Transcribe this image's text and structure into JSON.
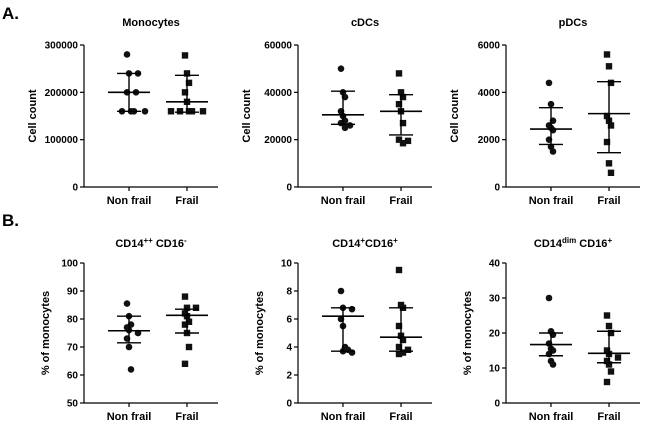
{
  "panels": [
    {
      "letter": "A."
    },
    {
      "letter": "B."
    }
  ],
  "chart_data": [
    {
      "type": "scatter",
      "title": "Monocytes",
      "title_parts": [
        {
          "text": "Monocytes",
          "sup": ""
        }
      ],
      "ylabel": "Cell count",
      "ylim": [
        0,
        300000
      ],
      "yticks": [
        0,
        100000,
        200000,
        300000
      ],
      "categories": [
        "Non frail",
        "Frail"
      ],
      "series": [
        {
          "name": "Non frail",
          "marker": "circle",
          "values": [
            280000,
            240000,
            240000,
            200000,
            200000,
            160000,
            160000,
            160000,
            160000
          ],
          "mean": 200000,
          "sd_low": 160000,
          "sd_high": 240000
        },
        {
          "name": "Frail",
          "marker": "square",
          "values": [
            278000,
            240000,
            220000,
            200000,
            180000,
            160000,
            160000,
            160000,
            160000,
            160000
          ],
          "mean": 180000,
          "sd_low": 158000,
          "sd_high": 236000
        }
      ]
    },
    {
      "type": "scatter",
      "title": "cDCs",
      "title_parts": [
        {
          "text": "cDCs",
          "sup": ""
        }
      ],
      "ylabel": "Cell count",
      "ylim": [
        0,
        60000
      ],
      "yticks": [
        0,
        20000,
        40000,
        60000
      ],
      "categories": [
        "Non frail",
        "Frail"
      ],
      "series": [
        {
          "name": "Non frail",
          "marker": "circle",
          "values": [
            50000,
            40000,
            38000,
            32000,
            30000,
            28000,
            27000,
            26000,
            25000
          ],
          "mean": 30500,
          "sd_low": 26500,
          "sd_high": 40500
        },
        {
          "name": "Frail",
          "marker": "square",
          "values": [
            48000,
            40000,
            38000,
            35000,
            32000,
            27000,
            20000,
            19500,
            18500
          ],
          "mean": 32000,
          "sd_low": 22000,
          "sd_high": 39000
        }
      ]
    },
    {
      "type": "scatter",
      "title": "pDCs",
      "title_parts": [
        {
          "text": "pDCs",
          "sup": ""
        }
      ],
      "ylabel": "Cell count",
      "ylim": [
        0,
        6000
      ],
      "yticks": [
        0,
        2000,
        4000,
        6000
      ],
      "categories": [
        "Non frail",
        "Frail"
      ],
      "series": [
        {
          "name": "Non frail",
          "marker": "circle",
          "values": [
            4400,
            3500,
            2800,
            2600,
            2500,
            2400,
            2000,
            1700,
            1500
          ],
          "mean": 2450,
          "sd_low": 1800,
          "sd_high": 3350
        },
        {
          "name": "Frail",
          "marker": "square",
          "values": [
            5600,
            5100,
            4400,
            3000,
            2800,
            2600,
            1900,
            1000,
            600
          ],
          "mean": 3100,
          "sd_low": 1450,
          "sd_high": 4450
        }
      ]
    },
    {
      "type": "scatter",
      "title": "CD14++ CD16-",
      "title_parts": [
        {
          "text": "CD14",
          "sup": "++"
        },
        {
          "text": " CD16",
          "sup": "-"
        }
      ],
      "ylabel": "% of monocytes",
      "ylim": [
        50,
        100
      ],
      "yticks": [
        50,
        60,
        70,
        80,
        90,
        100
      ],
      "categories": [
        "Non frail",
        "Frail"
      ],
      "series": [
        {
          "name": "Non frail",
          "marker": "circle",
          "values": [
            85.5,
            81,
            78,
            77,
            76,
            75,
            73,
            70,
            62
          ],
          "mean": 75.8,
          "sd_low": 71.5,
          "sd_high": 81
        },
        {
          "name": "Frail",
          "marker": "square",
          "values": [
            88,
            84,
            84,
            82,
            81,
            79,
            78,
            75,
            70,
            64
          ],
          "mean": 81.3,
          "sd_low": 75,
          "sd_high": 83.5
        }
      ]
    },
    {
      "type": "scatter",
      "title": "CD14+CD16+",
      "title_parts": [
        {
          "text": "CD14",
          "sup": "+"
        },
        {
          "text": "CD16",
          "sup": "+"
        }
      ],
      "ylabel": "% of monocytes",
      "ylim": [
        0,
        10
      ],
      "yticks": [
        0,
        2,
        4,
        6,
        8,
        10
      ],
      "categories": [
        "Non frail",
        "Frail"
      ],
      "series": [
        {
          "name": "Non frail",
          "marker": "circle",
          "values": [
            8,
            6.8,
            6.7,
            6,
            5.5,
            4,
            3.8,
            3.7,
            3.6
          ],
          "mean": 6.2,
          "sd_low": 3.7,
          "sd_high": 6.8
        },
        {
          "name": "Frail",
          "marker": "square",
          "values": [
            9.5,
            7,
            6.8,
            5.5,
            4.8,
            4.5,
            4,
            3.8,
            3.6,
            3.5
          ],
          "mean": 4.7,
          "sd_low": 3.7,
          "sd_high": 6.8
        }
      ]
    },
    {
      "type": "scatter",
      "title": "CD14dim CD16+",
      "title_parts": [
        {
          "text": "CD14",
          "sup": "dim"
        },
        {
          "text": " CD16",
          "sup": "+"
        }
      ],
      "ylabel": "% of monocytes",
      "ylim": [
        0,
        40
      ],
      "yticks": [
        0,
        10,
        20,
        30,
        40
      ],
      "categories": [
        "Non frail",
        "Frail"
      ],
      "series": [
        {
          "name": "Non frail",
          "marker": "circle",
          "values": [
            30,
            20.5,
            19.5,
            17,
            15.5,
            15,
            14,
            12,
            11
          ],
          "mean": 16.7,
          "sd_low": 13.5,
          "sd_high": 20
        },
        {
          "name": "Frail",
          "marker": "square",
          "values": [
            25,
            22,
            20,
            15,
            14,
            13,
            12,
            11,
            9,
            6
          ],
          "mean": 14.2,
          "sd_low": 11.5,
          "sd_high": 20.5
        }
      ]
    }
  ]
}
